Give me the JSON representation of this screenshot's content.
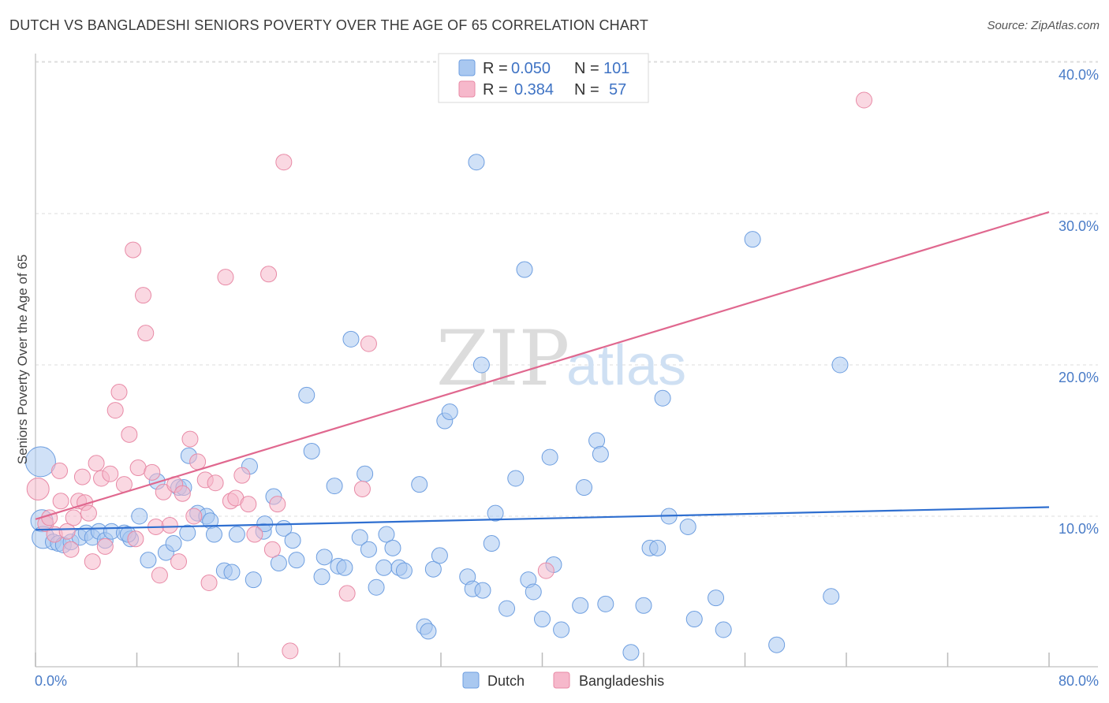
{
  "header": {
    "title": "DUTCH VS BANGLADESHI SENIORS POVERTY OVER THE AGE OF 65 CORRELATION CHART",
    "source": "Source: ZipAtlas.com"
  },
  "watermark": {
    "part1": "ZIP",
    "part2": "atlas"
  },
  "legend": {
    "rows": [
      {
        "r_label": "R = ",
        "r_value": "0.050",
        "n_label": "N = ",
        "n_value": "101",
        "color": "#a9c8f0"
      },
      {
        "r_label": "R = ",
        "r_value": "0.384",
        "n_label": "N = ",
        "n_value": "57",
        "color": "#f6b8cb"
      }
    ]
  },
  "bottom_legend": [
    {
      "label": "Dutch",
      "color": "#a9c8f0"
    },
    {
      "label": "Bangladeshis",
      "color": "#f6b8cb"
    }
  ],
  "chart_data": {
    "type": "scatter",
    "title": "DUTCH VS BANGLADESHI SENIORS POVERTY OVER THE AGE OF 65 CORRELATION CHART",
    "xlabel": "",
    "ylabel": "Seniors Poverty Over the Age of 65",
    "xlim": [
      0,
      80
    ],
    "ylim": [
      0,
      42
    ],
    "x_tick_labels": [
      {
        "value": 0,
        "label": "0.0%"
      },
      {
        "value": 80,
        "label": "80.0%"
      }
    ],
    "y_tick_labels": [
      {
        "value": 10,
        "label": "10.0%"
      },
      {
        "value": 20,
        "label": "20.0%"
      },
      {
        "value": 30,
        "label": "30.0%"
      },
      {
        "value": 40,
        "label": "40.0%"
      }
    ],
    "grid": true,
    "legend_position": "top-center",
    "series": [
      {
        "name": "Dutch",
        "color": "#a9c8f0",
        "stroke": "#6d9ee0",
        "trend": {
          "x": [
            0,
            80
          ],
          "y": [
            9.1,
            10.6
          ],
          "color": "#2f6fd0"
        },
        "points": [
          [
            0.4,
            13.6
          ],
          [
            0.5,
            9.7
          ],
          [
            0.6,
            8.6
          ],
          [
            1.4,
            8.3
          ],
          [
            1.8,
            8.2
          ],
          [
            2.2,
            8.1
          ],
          [
            2.8,
            8.3
          ],
          [
            3.5,
            8.6
          ],
          [
            4.0,
            8.9
          ],
          [
            4.5,
            8.6
          ],
          [
            5.0,
            9.0
          ],
          [
            5.5,
            8.4
          ],
          [
            6.0,
            9.0
          ],
          [
            7.0,
            8.9
          ],
          [
            7.5,
            8.5
          ],
          [
            8.2,
            10.0
          ],
          [
            8.9,
            7.1
          ],
          [
            9.6,
            12.3
          ],
          [
            10.3,
            7.6
          ],
          [
            10.9,
            8.2
          ],
          [
            11.3,
            11.9
          ],
          [
            11.7,
            11.9
          ],
          [
            12.1,
            14.0
          ],
          [
            12.8,
            10.2
          ],
          [
            13.5,
            10.0
          ],
          [
            13.8,
            9.7
          ],
          [
            14.1,
            8.8
          ],
          [
            14.9,
            6.4
          ],
          [
            15.5,
            6.3
          ],
          [
            15.9,
            8.8
          ],
          [
            16.9,
            13.3
          ],
          [
            17.2,
            5.8
          ],
          [
            18.0,
            9.0
          ],
          [
            18.1,
            9.5
          ],
          [
            18.8,
            11.3
          ],
          [
            19.2,
            6.9
          ],
          [
            19.6,
            9.2
          ],
          [
            20.3,
            8.4
          ],
          [
            20.6,
            7.1
          ],
          [
            21.4,
            18.0
          ],
          [
            21.8,
            14.3
          ],
          [
            22.6,
            6.0
          ],
          [
            22.8,
            7.3
          ],
          [
            23.6,
            12.0
          ],
          [
            23.9,
            6.7
          ],
          [
            24.4,
            6.6
          ],
          [
            24.9,
            21.7
          ],
          [
            25.6,
            8.6
          ],
          [
            26.0,
            12.8
          ],
          [
            26.3,
            7.8
          ],
          [
            26.9,
            5.3
          ],
          [
            27.5,
            6.6
          ],
          [
            27.7,
            8.8
          ],
          [
            28.2,
            7.9
          ],
          [
            28.7,
            6.6
          ],
          [
            29.1,
            6.4
          ],
          [
            30.3,
            12.1
          ],
          [
            30.7,
            2.7
          ],
          [
            31.0,
            2.4
          ],
          [
            31.4,
            6.5
          ],
          [
            31.9,
            7.4
          ],
          [
            32.3,
            16.3
          ],
          [
            32.7,
            16.9
          ],
          [
            34.1,
            6.0
          ],
          [
            34.5,
            5.2
          ],
          [
            34.8,
            33.4
          ],
          [
            35.2,
            20.0
          ],
          [
            35.3,
            5.1
          ],
          [
            36.0,
            8.2
          ],
          [
            36.3,
            10.2
          ],
          [
            37.2,
            3.9
          ],
          [
            37.9,
            12.5
          ],
          [
            38.6,
            26.3
          ],
          [
            38.9,
            5.8
          ],
          [
            39.3,
            5.0
          ],
          [
            40.0,
            3.2
          ],
          [
            40.6,
            13.9
          ],
          [
            40.9,
            6.8
          ],
          [
            41.5,
            2.5
          ],
          [
            43.0,
            4.1
          ],
          [
            43.3,
            11.9
          ],
          [
            44.3,
            15.0
          ],
          [
            44.6,
            14.1
          ],
          [
            45.0,
            4.2
          ],
          [
            47.0,
            1.0
          ],
          [
            48.0,
            4.1
          ],
          [
            48.5,
            7.9
          ],
          [
            49.1,
            7.9
          ],
          [
            49.5,
            17.8
          ],
          [
            50.0,
            10.0
          ],
          [
            51.5,
            9.3
          ],
          [
            52.0,
            3.2
          ],
          [
            53.7,
            4.6
          ],
          [
            54.3,
            2.5
          ],
          [
            56.6,
            28.3
          ],
          [
            58.5,
            1.5
          ],
          [
            62.8,
            4.7
          ],
          [
            63.5,
            20.0
          ],
          [
            7.3,
            8.8
          ],
          [
            12.0,
            8.9
          ]
        ]
      },
      {
        "name": "Bangladeshis",
        "color": "#f6b8cb",
        "stroke": "#e88aa6",
        "trend": {
          "x": [
            0,
            80
          ],
          "y": [
            9.8,
            30.1
          ],
          "color": "#e0688f"
        },
        "points": [
          [
            0.2,
            11.8
          ],
          [
            0.8,
            9.5
          ],
          [
            1.1,
            9.9
          ],
          [
            1.5,
            8.8
          ],
          [
            1.9,
            13.0
          ],
          [
            2.0,
            11.0
          ],
          [
            2.5,
            9.0
          ],
          [
            2.8,
            7.8
          ],
          [
            3.0,
            9.9
          ],
          [
            3.4,
            11.0
          ],
          [
            3.7,
            12.6
          ],
          [
            3.9,
            10.9
          ],
          [
            4.2,
            10.2
          ],
          [
            4.5,
            7.0
          ],
          [
            4.8,
            13.5
          ],
          [
            5.2,
            12.5
          ],
          [
            5.5,
            8.0
          ],
          [
            5.9,
            12.8
          ],
          [
            6.3,
            17.0
          ],
          [
            6.6,
            18.2
          ],
          [
            7.0,
            12.1
          ],
          [
            7.4,
            15.4
          ],
          [
            7.7,
            27.6
          ],
          [
            7.9,
            8.5
          ],
          [
            8.1,
            13.2
          ],
          [
            8.5,
            24.6
          ],
          [
            8.7,
            22.1
          ],
          [
            9.2,
            12.9
          ],
          [
            9.5,
            9.3
          ],
          [
            9.8,
            6.1
          ],
          [
            10.1,
            11.6
          ],
          [
            10.6,
            9.4
          ],
          [
            11.0,
            12.1
          ],
          [
            11.3,
            7.0
          ],
          [
            11.6,
            11.5
          ],
          [
            12.2,
            15.1
          ],
          [
            12.5,
            10.0
          ],
          [
            12.8,
            13.6
          ],
          [
            13.4,
            12.4
          ],
          [
            13.7,
            5.6
          ],
          [
            14.2,
            12.2
          ],
          [
            15.0,
            25.8
          ],
          [
            15.4,
            11.0
          ],
          [
            15.8,
            11.2
          ],
          [
            16.3,
            12.7
          ],
          [
            16.8,
            10.8
          ],
          [
            17.3,
            8.8
          ],
          [
            18.4,
            26.0
          ],
          [
            18.7,
            7.8
          ],
          [
            19.1,
            10.8
          ],
          [
            19.6,
            33.4
          ],
          [
            20.1,
            1.1
          ],
          [
            24.6,
            4.9
          ],
          [
            25.8,
            11.8
          ],
          [
            26.3,
            21.4
          ],
          [
            40.3,
            6.4
          ],
          [
            65.4,
            37.5
          ]
        ]
      }
    ]
  }
}
